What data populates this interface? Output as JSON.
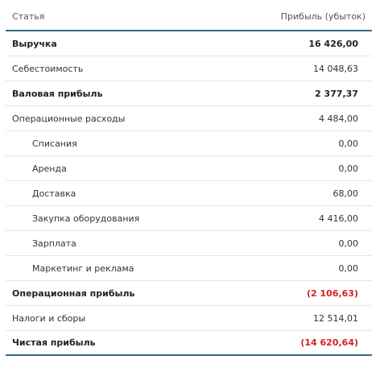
{
  "table": {
    "header": {
      "item_label": "Статья",
      "amount_label": "Прибыль (убыток)"
    },
    "rows": [
      {
        "label": "Выручка",
        "amount": "16 426,00",
        "bold": true,
        "sub": false,
        "negative": false
      },
      {
        "label": "Себестоимость",
        "amount": "14 048,63",
        "bold": false,
        "sub": false,
        "negative": false
      },
      {
        "label": "Валовая прибыль",
        "amount": "2 377,37",
        "bold": true,
        "sub": false,
        "negative": false
      },
      {
        "label": "Операционные расходы",
        "amount": "4 484,00",
        "bold": false,
        "sub": false,
        "negative": false
      },
      {
        "label": "Списания",
        "amount": "0,00",
        "bold": false,
        "sub": true,
        "negative": false
      },
      {
        "label": "Аренда",
        "amount": "0,00",
        "bold": false,
        "sub": true,
        "negative": false
      },
      {
        "label": "Доставка",
        "amount": "68,00",
        "bold": false,
        "sub": true,
        "negative": false
      },
      {
        "label": "Закупка оборудования",
        "amount": "4 416,00",
        "bold": false,
        "sub": true,
        "negative": false
      },
      {
        "label": "Зарплата",
        "amount": "0,00",
        "bold": false,
        "sub": true,
        "negative": false
      },
      {
        "label": "Маркетинг и реклама",
        "amount": "0,00",
        "bold": false,
        "sub": true,
        "negative": false
      },
      {
        "label": "Операционная прибыль",
        "amount": "(2 106,63)",
        "bold": true,
        "sub": false,
        "negative": true
      },
      {
        "label": "Налоги и сборы",
        "amount": "12 514,01",
        "bold": false,
        "sub": false,
        "negative": false
      },
      {
        "label": "Чистая прибыль",
        "amount": "(14 620,64)",
        "bold": true,
        "sub": false,
        "negative": true
      }
    ]
  },
  "colors": {
    "accent_line": "#2f6f86",
    "negative": "#d61f1f"
  }
}
